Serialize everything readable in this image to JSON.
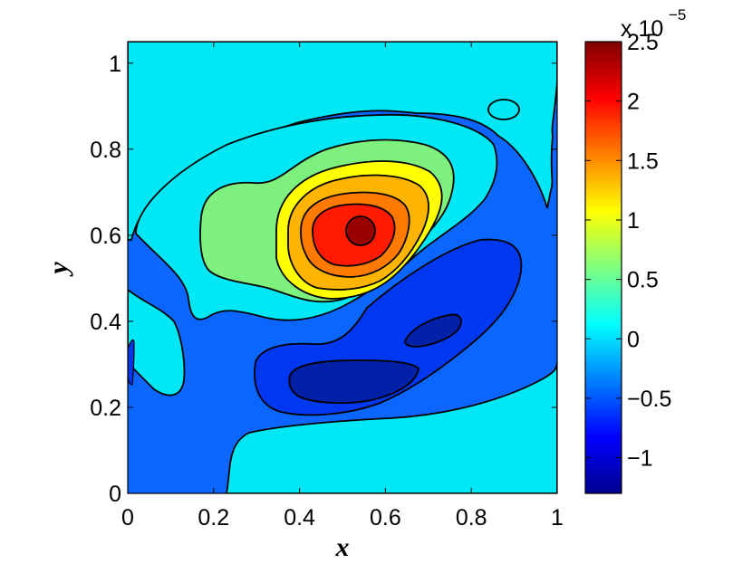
{
  "chart_data": {
    "type": "contourf",
    "title": "",
    "xlabel": "x",
    "ylabel": "y",
    "xlim": [
      0,
      1
    ],
    "ylim": [
      0,
      1.05
    ],
    "xticks": [
      "0",
      "0.2",
      "0.4",
      "0.6",
      "0.8",
      "1"
    ],
    "yticks": [
      "0",
      "0.2",
      "0.4",
      "0.6",
      "0.8",
      "1"
    ],
    "colorbar": {
      "colormap": "jet",
      "range": [
        -1.3,
        2.5
      ],
      "exponent_label": "x 10",
      "exponent": "−5",
      "ticks": [
        "2.5",
        "2",
        "1.5",
        "1",
        "0.5",
        "0",
        "−0.5",
        "−1"
      ]
    },
    "contour_levels": [
      -1.2,
      -0.9,
      -0.6,
      -0.3,
      0,
      0.3,
      0.6,
      0.9,
      1.2,
      1.5,
      1.8,
      2.1,
      2.4
    ],
    "features": [
      {
        "kind": "max",
        "x": 0.54,
        "y": 0.61,
        "value": 2.4
      },
      {
        "kind": "min",
        "x": 0.64,
        "y": 0.3,
        "value": -1.1
      }
    ],
    "grid": false
  }
}
